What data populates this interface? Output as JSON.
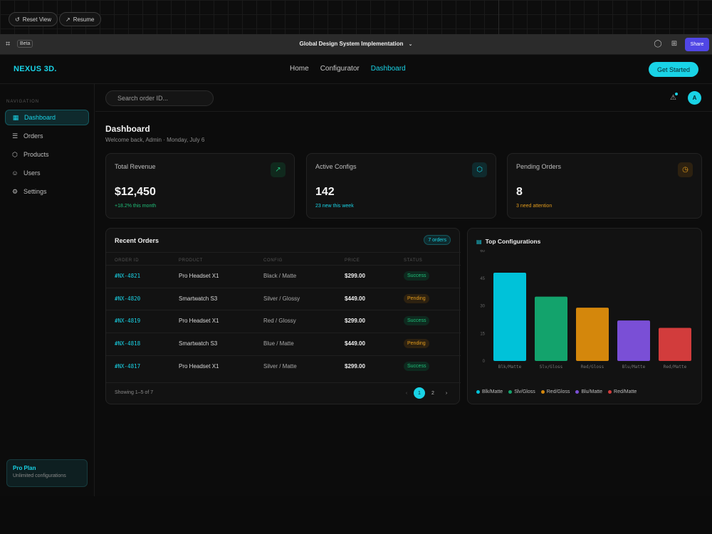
{
  "topstrip": {
    "reset_label": "Reset View",
    "resume_label": "Resume"
  },
  "toolbar": {
    "logo_glyph": "⌗",
    "beta_label": "Beta",
    "file_title": "Global Design System Implementation",
    "share_label": "Share"
  },
  "navbar": {
    "brand": "NEXUS 3D.",
    "links": [
      {
        "label": "Home"
      },
      {
        "label": "Configurator"
      },
      {
        "label": "Dashboard"
      }
    ],
    "cta": "Get Started"
  },
  "sidebar": {
    "heading": "NAVIGATION",
    "items": [
      {
        "label": "Dashboard",
        "icon": "grid-icon",
        "glyph": "▦"
      },
      {
        "label": "Orders",
        "icon": "cart-icon",
        "glyph": "☰"
      },
      {
        "label": "Products",
        "icon": "box-icon",
        "glyph": "⬡"
      },
      {
        "label": "Users",
        "icon": "users-icon",
        "glyph": "☺"
      },
      {
        "label": "Settings",
        "icon": "gear-icon",
        "glyph": "⚙"
      }
    ],
    "pro": {
      "title": "Pro Plan",
      "subtitle": "Unlimited configurations"
    }
  },
  "header": {
    "search_placeholder": "Search order ID...",
    "avatar_initial": "A"
  },
  "page": {
    "title": "Dashboard",
    "subtitle": "Welcome back, Admin · Monday, July 6"
  },
  "stats": [
    {
      "label": "Total Revenue",
      "value": "$12,450",
      "sub": "+18.2% this month",
      "icon": "trend-up-icon",
      "color": "#1fbf79"
    },
    {
      "label": "Active Configs",
      "value": "142",
      "sub": "23 new this week",
      "icon": "cube-icon",
      "color": "#19d3e6"
    },
    {
      "label": "Pending Orders",
      "value": "8",
      "sub": "3 need attention",
      "icon": "clock-icon",
      "color": "#e09a1c"
    }
  ],
  "orders": {
    "title": "Recent Orders",
    "badge": "7 orders",
    "columns": [
      "ORDER ID",
      "PRODUCT",
      "CONFIG",
      "PRICE",
      "STATUS"
    ],
    "rows": [
      {
        "id": "#NX-4821",
        "product": "Pro Headset X1",
        "config": "Black / Matte",
        "price": "$299.00",
        "status": "Success"
      },
      {
        "id": "#NX-4820",
        "product": "Smartwatch S3",
        "config": "Silver / Glossy",
        "price": "$449.00",
        "status": "Pending"
      },
      {
        "id": "#NX-4819",
        "product": "Pro Headset X1",
        "config": "Red / Glossy",
        "price": "$299.00",
        "status": "Success"
      },
      {
        "id": "#NX-4818",
        "product": "Smartwatch S3",
        "config": "Blue / Matte",
        "price": "$449.00",
        "status": "Pending"
      },
      {
        "id": "#NX-4817",
        "product": "Pro Headset X1",
        "config": "Silver / Matte",
        "price": "$299.00",
        "status": "Success"
      }
    ],
    "footer": "Showing 1–5 of 7",
    "pages": [
      "1",
      "2"
    ],
    "prev": "‹",
    "next": "›"
  },
  "chart_data": {
    "type": "bar",
    "title": "Top Configurations",
    "categories": [
      "Blk/Matte",
      "Slv/Gloss",
      "Red/Gloss",
      "Blu/Matte",
      "Red/Matte"
    ],
    "values": [
      48,
      35,
      29,
      22,
      18
    ],
    "colors": [
      "#00c2d9",
      "#13a36c",
      "#d4870c",
      "#7a4fd6",
      "#d23c3c"
    ],
    "yticks": [
      0,
      15,
      30,
      45,
      60
    ],
    "ylim": [
      0,
      60
    ],
    "legend": "bottom",
    "grid": false
  }
}
